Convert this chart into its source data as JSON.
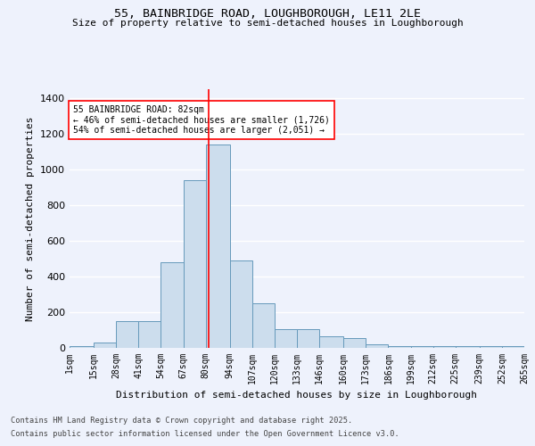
{
  "title_line1": "55, BAINBRIDGE ROAD, LOUGHBOROUGH, LE11 2LE",
  "title_line2": "Size of property relative to semi-detached houses in Loughborough",
  "xlabel": "Distribution of semi-detached houses by size in Loughborough",
  "ylabel": "Number of semi-detached properties",
  "footer_line1": "Contains HM Land Registry data © Crown copyright and database right 2025.",
  "footer_line2": "Contains public sector information licensed under the Open Government Licence v3.0.",
  "bin_labels": [
    "1sqm",
    "15sqm",
    "28sqm",
    "41sqm",
    "54sqm",
    "67sqm",
    "80sqm",
    "94sqm",
    "107sqm",
    "120sqm",
    "133sqm",
    "146sqm",
    "160sqm",
    "173sqm",
    "186sqm",
    "199sqm",
    "212sqm",
    "225sqm",
    "239sqm",
    "252sqm",
    "265sqm"
  ],
  "bin_edges": [
    1,
    15,
    28,
    41,
    54,
    67,
    80,
    94,
    107,
    120,
    133,
    146,
    160,
    173,
    186,
    199,
    212,
    225,
    239,
    252,
    265
  ],
  "bar_heights": [
    8,
    28,
    150,
    150,
    480,
    940,
    1140,
    490,
    250,
    105,
    105,
    65,
    55,
    22,
    10,
    8,
    8,
    12,
    8,
    8
  ],
  "bar_color": "#ccdded",
  "bar_edge_color": "#6699bb",
  "red_line_x": 82,
  "annotation_title": "55 BAINBRIDGE ROAD: 82sqm",
  "annotation_line2": "← 46% of semi-detached houses are smaller (1,726)",
  "annotation_line3": "54% of semi-detached houses are larger (2,051) →",
  "ylim": [
    0,
    1450
  ],
  "yticks": [
    0,
    200,
    400,
    600,
    800,
    1000,
    1200,
    1400
  ],
  "background_color": "#eef2fc",
  "grid_color": "#ffffff"
}
